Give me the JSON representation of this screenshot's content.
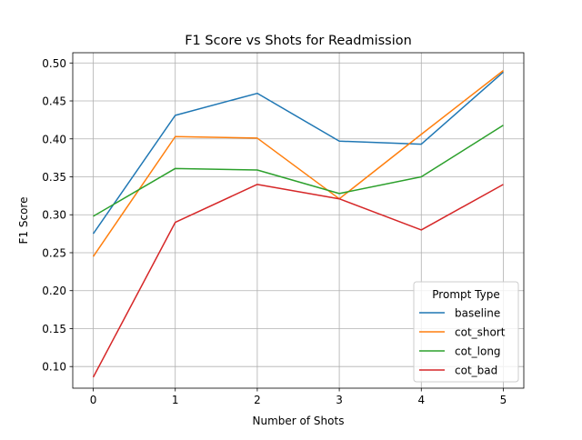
{
  "chart_data": {
    "type": "line",
    "title": "F1 Score vs Shots for Readmission",
    "xlabel": "Number of Shots",
    "ylabel": "F1 Score",
    "x": [
      0,
      1,
      2,
      3,
      4,
      5
    ],
    "xticks": [
      "0",
      "1",
      "2",
      "3",
      "4",
      "5"
    ],
    "yticks": [
      0.1,
      0.15,
      0.2,
      0.25,
      0.3,
      0.35,
      0.4,
      0.45,
      0.5
    ],
    "xlim": [
      -0.25,
      5.25
    ],
    "ylim": [
      0.0715,
      0.5135
    ],
    "grid": true,
    "legend": {
      "title": "Prompt Type",
      "placement": "lower-right"
    },
    "series": [
      {
        "name": "baseline",
        "color": "#1f77b4",
        "values": [
          0.275,
          0.431,
          0.46,
          0.397,
          0.393,
          0.488
        ]
      },
      {
        "name": "cot_short",
        "color": "#ff7f0e",
        "values": [
          0.245,
          0.403,
          0.401,
          0.321,
          0.406,
          0.49
        ]
      },
      {
        "name": "cot_long",
        "color": "#2ca02c",
        "values": [
          0.298,
          0.361,
          0.359,
          0.328,
          0.35,
          0.418
        ]
      },
      {
        "name": "cot_bad",
        "color": "#d62728",
        "values": [
          0.086,
          0.29,
          0.34,
          0.321,
          0.28,
          0.34
        ]
      }
    ]
  }
}
